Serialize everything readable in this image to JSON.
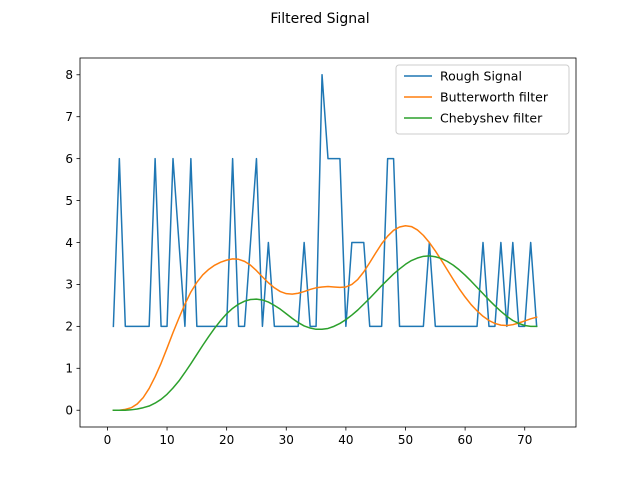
{
  "chart_data": {
    "type": "line",
    "title": "Filtered Signal",
    "xlabel": "",
    "ylabel": "",
    "xlim": [
      -4.6,
      78.6
    ],
    "ylim": [
      -0.4,
      8.4
    ],
    "xticks": [
      0,
      10,
      20,
      30,
      40,
      50,
      60,
      70
    ],
    "yticks": [
      0,
      1,
      2,
      3,
      4,
      5,
      6,
      7,
      8
    ],
    "grid": false,
    "legend_position": "top-right",
    "series": [
      {
        "name": "Rough Signal",
        "color": "#1f77b4",
        "x": [
          1,
          2,
          3,
          4,
          5,
          6,
          7,
          8,
          9,
          10,
          11,
          12,
          13,
          14,
          15,
          16,
          17,
          18,
          19,
          20,
          21,
          22,
          23,
          24,
          25,
          26,
          27,
          28,
          29,
          30,
          31,
          32,
          33,
          34,
          35,
          36,
          37,
          38,
          39,
          40,
          41,
          42,
          43,
          44,
          45,
          46,
          47,
          48,
          49,
          50,
          51,
          52,
          53,
          54,
          55,
          56,
          57,
          58,
          59,
          60,
          61,
          62,
          63,
          64,
          65,
          66,
          67,
          68,
          69,
          70,
          71,
          72
        ],
        "y": [
          2,
          6,
          2,
          2,
          2,
          2,
          2,
          6,
          2,
          2,
          6,
          4,
          2,
          6,
          2,
          2,
          2,
          2,
          2,
          2,
          6,
          2,
          2,
          4,
          6,
          2,
          4,
          2,
          2,
          2,
          2,
          2,
          4,
          2,
          2,
          8,
          6,
          6,
          6,
          2,
          4,
          4,
          4,
          2,
          2,
          2,
          6,
          6,
          2,
          2,
          2,
          2,
          2,
          4,
          2,
          2,
          2,
          2,
          2,
          2,
          2,
          2,
          4,
          2,
          2,
          4,
          2,
          4,
          2,
          2,
          4,
          2
        ]
      },
      {
        "name": "Butterworth filter",
        "color": "#ff7f0e",
        "x": [
          1,
          2,
          3,
          4,
          5,
          6,
          7,
          8,
          9,
          10,
          11,
          12,
          13,
          14,
          15,
          16,
          17,
          18,
          19,
          20,
          21,
          22,
          23,
          24,
          25,
          26,
          27,
          28,
          29,
          30,
          31,
          32,
          33,
          34,
          35,
          36,
          37,
          38,
          39,
          40,
          41,
          42,
          43,
          44,
          45,
          46,
          47,
          48,
          49,
          50,
          51,
          52,
          53,
          54,
          55,
          56,
          57,
          58,
          59,
          60,
          61,
          62,
          63,
          64,
          65,
          66,
          67,
          68,
          69,
          70,
          71,
          72
        ],
        "y": [
          0,
          0,
          0.02,
          0.06,
          0.15,
          0.3,
          0.52,
          0.8,
          1.12,
          1.48,
          1.85,
          2.2,
          2.53,
          2.82,
          3.05,
          3.23,
          3.36,
          3.46,
          3.53,
          3.58,
          3.61,
          3.6,
          3.55,
          3.46,
          3.33,
          3.18,
          3.04,
          2.92,
          2.83,
          2.78,
          2.77,
          2.79,
          2.83,
          2.88,
          2.92,
          2.94,
          2.95,
          2.94,
          2.93,
          2.94,
          3.0,
          3.12,
          3.3,
          3.52,
          3.75,
          3.97,
          4.15,
          4.29,
          4.37,
          4.4,
          4.38,
          4.3,
          4.17,
          4.0,
          3.8,
          3.58,
          3.35,
          3.12,
          2.9,
          2.7,
          2.52,
          2.37,
          2.24,
          2.14,
          2.07,
          2.03,
          2.02,
          2.04,
          2.08,
          2.13,
          2.18,
          2.22
        ]
      },
      {
        "name": "Chebyshev filter",
        "color": "#2ca02c",
        "x": [
          1,
          2,
          3,
          4,
          5,
          6,
          7,
          8,
          9,
          10,
          11,
          12,
          13,
          14,
          15,
          16,
          17,
          18,
          19,
          20,
          21,
          22,
          23,
          24,
          25,
          26,
          27,
          28,
          29,
          30,
          31,
          32,
          33,
          34,
          35,
          36,
          37,
          38,
          39,
          40,
          41,
          42,
          43,
          44,
          45,
          46,
          47,
          48,
          49,
          50,
          51,
          52,
          53,
          54,
          55,
          56,
          57,
          58,
          59,
          60,
          61,
          62,
          63,
          64,
          65,
          66,
          67,
          68,
          69,
          70,
          71,
          72
        ],
        "y": [
          0,
          0,
          0,
          0.01,
          0.03,
          0.06,
          0.1,
          0.17,
          0.26,
          0.38,
          0.53,
          0.7,
          0.9,
          1.11,
          1.33,
          1.55,
          1.76,
          1.96,
          2.14,
          2.3,
          2.43,
          2.53,
          2.6,
          2.64,
          2.65,
          2.63,
          2.58,
          2.5,
          2.41,
          2.3,
          2.19,
          2.09,
          2.01,
          1.96,
          1.93,
          1.93,
          1.95,
          2.0,
          2.07,
          2.16,
          2.27,
          2.39,
          2.53,
          2.67,
          2.82,
          2.97,
          3.11,
          3.25,
          3.37,
          3.48,
          3.57,
          3.63,
          3.67,
          3.68,
          3.66,
          3.62,
          3.55,
          3.46,
          3.35,
          3.22,
          3.08,
          2.93,
          2.78,
          2.63,
          2.49,
          2.36,
          2.24,
          2.14,
          2.07,
          2.02,
          2.0,
          2.0
        ]
      }
    ]
  }
}
